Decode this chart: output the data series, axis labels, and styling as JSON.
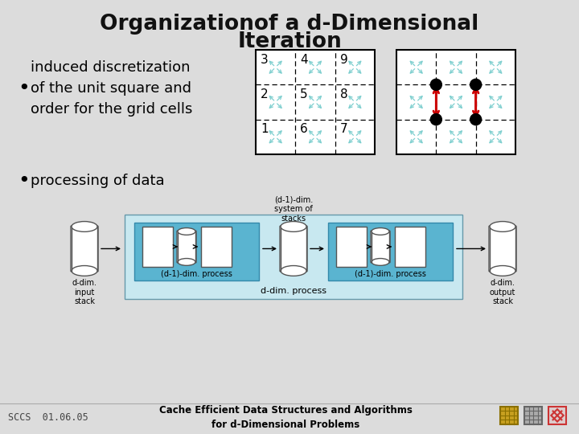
{
  "title_line1": "Organizationof a d-Dimensional",
  "title_line2": "Iteration",
  "footer_left": "SCCS  01.06.05",
  "footer_center_line1": "Cache Efficient Data Structures and Algorithms",
  "footer_center_line2": "for d-Dimensional Problems",
  "bg_color": "#dcdcdc",
  "title_color": "#111111",
  "grid_numbers_top_row": [
    "3",
    "4",
    "9"
  ],
  "grid_numbers_mid_row": [
    "2",
    "5",
    "8"
  ],
  "grid_numbers_bot_row": [
    "1",
    "6",
    "7"
  ],
  "cyan_arrow_color": "#7ecfcf",
  "red_arrow_color": "#cc0000",
  "process_bg_light": "#c8e8f0",
  "process_bg_dark": "#5ab4d0",
  "process_border": "#3399bb"
}
